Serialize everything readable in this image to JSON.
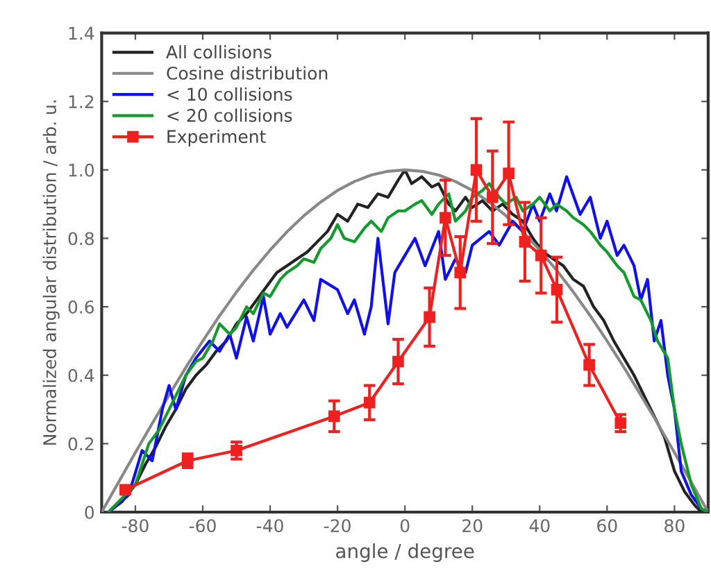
{
  "chart_data": {
    "type": "line",
    "xlabel": "angle / degree",
    "ylabel": "Normalized angular distribution / arb. u.",
    "xlim": [
      -90,
      90
    ],
    "ylim": [
      0,
      1.4
    ],
    "xticks": [
      -80,
      -60,
      -40,
      -20,
      0,
      20,
      40,
      60,
      80
    ],
    "yticks": [
      0,
      0.2,
      0.4,
      0.6,
      0.8,
      {
        "value": 1.0,
        "label": "1.0"
      },
      1.2,
      1.4
    ],
    "legend": "top left",
    "grid": false,
    "series": [
      {
        "name": "All collisions",
        "color": "#222222",
        "marker": "none",
        "x": [
          -88,
          -84,
          -80,
          -77,
          -74,
          -71,
          -68,
          -65,
          -62,
          -59,
          -56,
          -53,
          -50,
          -47,
          -44,
          -41,
          -38,
          -35,
          -32,
          -29,
          -26,
          -23,
          -20,
          -17,
          -14,
          -11,
          -8,
          -5,
          -2,
          0,
          2,
          5,
          8,
          10,
          13,
          15,
          18,
          20,
          23,
          26,
          29,
          32,
          35,
          38,
          41,
          44,
          47,
          50,
          53,
          56,
          59,
          62,
          65,
          68,
          71,
          74,
          77,
          80,
          83,
          86,
          88
        ],
        "values": [
          0,
          0.03,
          0.08,
          0.14,
          0.19,
          0.25,
          0.3,
          0.36,
          0.4,
          0.43,
          0.47,
          0.5,
          0.55,
          0.58,
          0.62,
          0.66,
          0.7,
          0.72,
          0.74,
          0.76,
          0.79,
          0.82,
          0.87,
          0.85,
          0.9,
          0.89,
          0.93,
          0.92,
          0.97,
          1.0,
          0.96,
          0.98,
          0.95,
          0.96,
          0.9,
          0.88,
          0.92,
          0.89,
          0.91,
          0.88,
          0.9,
          0.87,
          0.85,
          0.8,
          0.76,
          0.74,
          0.72,
          0.68,
          0.66,
          0.6,
          0.56,
          0.5,
          0.45,
          0.4,
          0.34,
          0.28,
          0.22,
          0.12,
          0.06,
          0.02,
          0
        ]
      },
      {
        "name": "Cosine distribution",
        "color": "#888888",
        "marker": "none",
        "x": [
          -90,
          -85,
          -80,
          -75,
          -70,
          -65,
          -60,
          -55,
          -50,
          -45,
          -40,
          -35,
          -30,
          -25,
          -20,
          -15,
          -10,
          -5,
          0,
          5,
          10,
          15,
          20,
          25,
          30,
          35,
          40,
          45,
          50,
          55,
          60,
          65,
          70,
          75,
          80,
          85,
          90
        ],
        "values": [
          0,
          0.087,
          0.174,
          0.259,
          0.342,
          0.423,
          0.5,
          0.574,
          0.643,
          0.707,
          0.766,
          0.819,
          0.866,
          0.906,
          0.94,
          0.966,
          0.985,
          0.996,
          1.0,
          0.996,
          0.985,
          0.966,
          0.94,
          0.906,
          0.866,
          0.819,
          0.766,
          0.707,
          0.643,
          0.574,
          0.5,
          0.423,
          0.342,
          0.259,
          0.174,
          0.087,
          0
        ]
      },
      {
        "name": "< 10 collisions",
        "color": "#1010ee",
        "marker": "none",
        "x": [
          -88,
          -82,
          -78,
          -75,
          -72,
          -70,
          -68,
          -65,
          -62,
          -58,
          -55,
          -52,
          -50,
          -47,
          -45,
          -42,
          -40,
          -37,
          -35,
          -30,
          -27,
          -25,
          -20,
          -17,
          -15,
          -12,
          -10,
          -8,
          -5,
          -3,
          0,
          3,
          6,
          10,
          12,
          15,
          18,
          20,
          25,
          28,
          32,
          35,
          38,
          40,
          43,
          45,
          48,
          52,
          55,
          58,
          60,
          63,
          65,
          68,
          70,
          72,
          74,
          76,
          78,
          80,
          82,
          85,
          88,
          90
        ],
        "values": [
          0,
          0.05,
          0.18,
          0.15,
          0.3,
          0.37,
          0.3,
          0.4,
          0.45,
          0.5,
          0.47,
          0.52,
          0.45,
          0.57,
          0.5,
          0.63,
          0.52,
          0.58,
          0.54,
          0.62,
          0.56,
          0.68,
          0.65,
          0.58,
          0.62,
          0.52,
          0.6,
          0.8,
          0.55,
          0.7,
          0.75,
          0.8,
          0.72,
          0.82,
          0.68,
          0.74,
          0.7,
          0.78,
          0.82,
          0.78,
          0.85,
          0.82,
          0.9,
          0.85,
          0.93,
          0.88,
          0.98,
          0.87,
          0.92,
          0.8,
          0.85,
          0.75,
          0.78,
          0.72,
          0.62,
          0.68,
          0.5,
          0.56,
          0.4,
          0.3,
          0.12,
          0.05,
          0.01,
          0
        ]
      },
      {
        "name": "< 20 collisions",
        "color": "#139a2c",
        "marker": "none",
        "x": [
          -88,
          -80,
          -76,
          -73,
          -70,
          -67,
          -65,
          -62,
          -60,
          -57,
          -55,
          -52,
          -50,
          -47,
          -45,
          -42,
          -40,
          -37,
          -35,
          -32,
          -30,
          -27,
          -25,
          -22,
          -20,
          -18,
          -15,
          -12,
          -10,
          -7,
          -5,
          -2,
          0,
          3,
          5,
          8,
          10,
          13,
          15,
          18,
          20,
          23,
          25,
          28,
          30,
          33,
          35,
          38,
          40,
          43,
          45,
          48,
          50,
          53,
          55,
          58,
          60,
          63,
          65,
          68,
          70,
          73,
          75,
          78,
          80,
          82,
          85,
          88,
          90
        ],
        "values": [
          0,
          0.08,
          0.2,
          0.24,
          0.3,
          0.36,
          0.4,
          0.44,
          0.45,
          0.5,
          0.55,
          0.52,
          0.54,
          0.6,
          0.58,
          0.64,
          0.63,
          0.68,
          0.7,
          0.72,
          0.74,
          0.73,
          0.77,
          0.8,
          0.84,
          0.8,
          0.79,
          0.83,
          0.85,
          0.82,
          0.86,
          0.88,
          0.88,
          0.9,
          0.91,
          0.87,
          0.9,
          0.93,
          0.85,
          0.88,
          0.92,
          0.94,
          0.96,
          0.92,
          0.9,
          0.92,
          0.88,
          0.9,
          0.92,
          0.88,
          0.9,
          0.88,
          0.86,
          0.84,
          0.82,
          0.78,
          0.76,
          0.72,
          0.7,
          0.63,
          0.62,
          0.56,
          0.5,
          0.45,
          0.3,
          0.2,
          0.08,
          0.01,
          0
        ]
      },
      {
        "name": "Experiment",
        "color": "#ee2020",
        "marker": "square",
        "x": [
          -83,
          -64.5,
          -50,
          -21,
          -10.5,
          -2,
          7.3,
          12,
          16.4,
          21.2,
          26,
          30.8,
          35.6,
          40.4,
          45.1,
          54.7,
          64
        ],
        "values": [
          0.065,
          0.15,
          0.18,
          0.28,
          0.32,
          0.44,
          0.57,
          0.86,
          0.7,
          1.0,
          0.92,
          0.99,
          0.79,
          0.75,
          0.65,
          0.43,
          0.26
        ],
        "errors": [
          0.01,
          0.02,
          0.025,
          0.045,
          0.05,
          0.065,
          0.085,
          0.11,
          0.105,
          0.15,
          0.135,
          0.15,
          0.115,
          0.11,
          0.095,
          0.06,
          0.025
        ]
      }
    ]
  }
}
